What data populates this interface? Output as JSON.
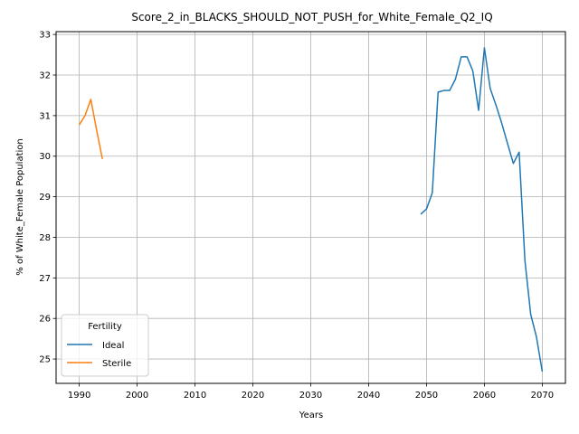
{
  "chart_data": {
    "type": "line",
    "title": "Score_2_in_BLACKS_SHOULD_NOT_PUSH_for_White_Female_Q2_IQ",
    "xlabel": "Years",
    "ylabel": "% of White_Female Population",
    "xlim": [
      1986,
      2074
    ],
    "ylim": [
      24.4,
      33.07
    ],
    "xticks": [
      1990,
      2000,
      2010,
      2020,
      2030,
      2040,
      2050,
      2060,
      2070
    ],
    "yticks": [
      25,
      26,
      27,
      28,
      29,
      30,
      31,
      32,
      33
    ],
    "grid": true,
    "legend": {
      "title": "Fertility",
      "position": "lower-left"
    },
    "series": [
      {
        "name": "Ideal",
        "color": "#1f77b4",
        "x": [
          2049,
          2050,
          2051,
          2052,
          2053,
          2054,
          2055,
          2056,
          2057,
          2058,
          2059,
          2060,
          2061,
          2062,
          2063,
          2064,
          2065,
          2066,
          2067,
          2068,
          2069,
          2070
        ],
        "y": [
          28.57,
          28.7,
          29.1,
          31.58,
          31.62,
          31.62,
          31.9,
          32.45,
          32.45,
          32.1,
          31.13,
          32.67,
          31.67,
          31.26,
          30.81,
          30.31,
          29.82,
          30.1,
          27.43,
          26.1,
          25.54,
          24.69
        ]
      },
      {
        "name": "Sterile",
        "color": "#ff7f0e",
        "x": [
          1990,
          1991,
          1992,
          1993,
          1994
        ],
        "y": [
          30.77,
          31.0,
          31.4,
          30.65,
          29.93
        ]
      }
    ]
  }
}
